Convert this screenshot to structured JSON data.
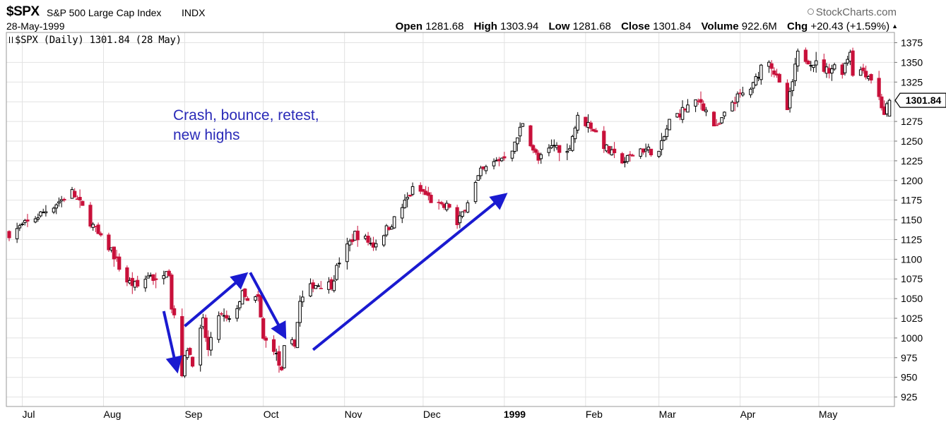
{
  "header": {
    "symbol": "$SPX",
    "name": "S&P 500 Large Cap Index",
    "exchange": "INDX",
    "date": "28-May-1999",
    "brand": "StockCharts.com",
    "open_label": "Open",
    "open": "1281.68",
    "high_label": "High",
    "high": "1303.94",
    "low_label": "Low",
    "low": "1281.68",
    "close_label": "Close",
    "close": "1301.84",
    "volume_label": "Volume",
    "volume": "922.6M",
    "chg_label": "Chg",
    "chg": "+20.43 (+1.59%)"
  },
  "legend": {
    "text": "$SPX (Daily) 1301.84 (28 May)"
  },
  "annotation": {
    "line1": "Crash, bounce, retest,",
    "line2": "new highs"
  },
  "last_price_label": "1301.84",
  "colors": {
    "up": "#000000",
    "down": "#c8103a",
    "arrow": "#1a1ad0",
    "grid": "#e2e2e2",
    "annotation": "#2a2ab8"
  },
  "chart_data": {
    "type": "candlestick",
    "title": "$SPX (Daily) 1301.84 (28 May)",
    "y_ticks": [
      925,
      950,
      975,
      1000,
      1025,
      1050,
      1075,
      1100,
      1125,
      1150,
      1175,
      1200,
      1225,
      1250,
      1275,
      1300,
      1325,
      1350,
      1375
    ],
    "ylim": [
      913,
      1388
    ],
    "x_ticks": [
      "Jul",
      "Aug",
      "Sep",
      "Oct",
      "Nov",
      "Dec",
      "1999",
      "Feb",
      "Mar",
      "Apr",
      "May"
    ],
    "x_tick_dates": [
      "1998-07-01",
      "1998-08-01",
      "1998-09-01",
      "1998-10-01",
      "1998-11-01",
      "1998-12-01",
      "1999-01-01",
      "1999-02-01",
      "1999-03-01",
      "1999-04-01",
      "1999-05-01"
    ],
    "xlim": [
      "1998-06-26",
      "1999-05-28"
    ],
    "grid": true,
    "close_path": [
      [
        "1998-06-26",
        1133
      ],
      [
        "1998-07-03",
        1146
      ],
      [
        "1998-07-10",
        1162
      ],
      [
        "1998-07-17",
        1178
      ],
      [
        "1998-07-20",
        1185
      ],
      [
        "1998-07-24",
        1165
      ],
      [
        "1998-07-31",
        1125
      ],
      [
        "1998-08-04",
        1112
      ],
      [
        "1998-08-07",
        1090
      ],
      [
        "1998-08-10",
        1072
      ],
      [
        "1998-08-14",
        1065
      ],
      [
        "1998-08-19",
        1082
      ],
      [
        "1998-08-21",
        1070
      ],
      [
        "1998-08-25",
        1090
      ],
      [
        "1998-08-26",
        1085
      ],
      [
        "1998-08-27",
        1040
      ],
      [
        "1998-08-28",
        1030
      ],
      [
        "1998-08-31",
        957
      ],
      [
        "1998-09-02",
        988
      ],
      [
        "1998-09-04",
        970
      ],
      [
        "1998-09-08",
        1020
      ],
      [
        "1998-09-10",
        983
      ],
      [
        "1998-09-14",
        1030
      ],
      [
        "1998-09-18",
        1020
      ],
      [
        "1998-09-23",
        1055
      ],
      [
        "1998-09-25",
        1045
      ],
      [
        "1998-09-29",
        1050
      ],
      [
        "1998-10-01",
        998
      ],
      [
        "1998-10-05",
        988
      ],
      [
        "1998-10-08",
        955
      ],
      [
        "1998-10-09",
        985
      ],
      [
        "1998-10-13",
        995
      ],
      [
        "1998-10-15",
        1045
      ],
      [
        "1998-10-20",
        1068
      ],
      [
        "1998-10-27",
        1068
      ],
      [
        "1998-10-30",
        1098
      ],
      [
        "1998-11-05",
        1132
      ],
      [
        "1998-11-09",
        1125
      ],
      [
        "1998-11-12",
        1118
      ],
      [
        "1998-11-20",
        1150
      ],
      [
        "1998-11-27",
        1188
      ],
      [
        "1998-12-01",
        1185
      ],
      [
        "1998-12-04",
        1175
      ],
      [
        "1998-12-08",
        1165
      ],
      [
        "1998-12-11",
        1168
      ],
      [
        "1998-12-14",
        1142
      ],
      [
        "1998-12-18",
        1175
      ],
      [
        "1998-12-23",
        1210
      ],
      [
        "1998-12-31",
        1229
      ],
      [
        "1999-01-05",
        1245
      ],
      [
        "1999-01-08",
        1275
      ],
      [
        "1999-01-12",
        1240
      ],
      [
        "1999-01-14",
        1225
      ],
      [
        "1999-01-20",
        1245
      ],
      [
        "1999-01-25",
        1235
      ],
      [
        "1999-01-29",
        1279
      ],
      [
        "1999-02-03",
        1270
      ],
      [
        "1999-02-09",
        1240
      ],
      [
        "1999-02-12",
        1230
      ],
      [
        "1999-02-16",
        1225
      ],
      [
        "1999-02-22",
        1240
      ],
      [
        "1999-02-26",
        1238
      ],
      [
        "1999-03-01",
        1235
      ],
      [
        "1999-03-05",
        1275
      ],
      [
        "1999-03-12",
        1294
      ],
      [
        "1999-03-17",
        1300
      ],
      [
        "1999-03-23",
        1265
      ],
      [
        "1999-03-29",
        1300
      ],
      [
        "1999-04-06",
        1320
      ],
      [
        "1999-04-09",
        1345
      ],
      [
        "1999-04-12",
        1355
      ],
      [
        "1999-04-16",
        1320
      ],
      [
        "1999-04-19",
        1290
      ],
      [
        "1999-04-23",
        1360
      ],
      [
        "1999-04-29",
        1350
      ],
      [
        "1999-05-04",
        1340
      ],
      [
        "1999-05-07",
        1345
      ],
      [
        "1999-05-10",
        1340
      ],
      [
        "1999-05-13",
        1365
      ],
      [
        "1999-05-14",
        1338
      ],
      [
        "1999-05-18",
        1340
      ],
      [
        "1999-05-21",
        1330
      ],
      [
        "1999-05-24",
        1305
      ],
      [
        "1999-05-26",
        1285
      ],
      [
        "1999-05-28",
        1301.84
      ]
    ],
    "last_bar": {
      "date": "1999-05-28",
      "open": 1281.68,
      "high": 1303.94,
      "low": 1281.68,
      "close": 1301.84
    },
    "annotations": [
      {
        "text": "Crash, bounce, retest, new highs",
        "type": "text"
      },
      {
        "type": "arrow",
        "from": [
          "1998-08-24",
          1034
        ],
        "to": [
          "1998-08-29",
          960
        ]
      },
      {
        "type": "arrow",
        "from": [
          "1998-09-01",
          1015
        ],
        "to": [
          "1998-09-24",
          1080
        ]
      },
      {
        "type": "arrow",
        "from": [
          "1998-09-26",
          1083
        ],
        "to": [
          "1998-10-09",
          1003
        ]
      },
      {
        "type": "arrow",
        "from": [
          "1998-10-20",
          985
        ],
        "to": [
          "1999-01-01",
          1181
        ]
      }
    ]
  }
}
